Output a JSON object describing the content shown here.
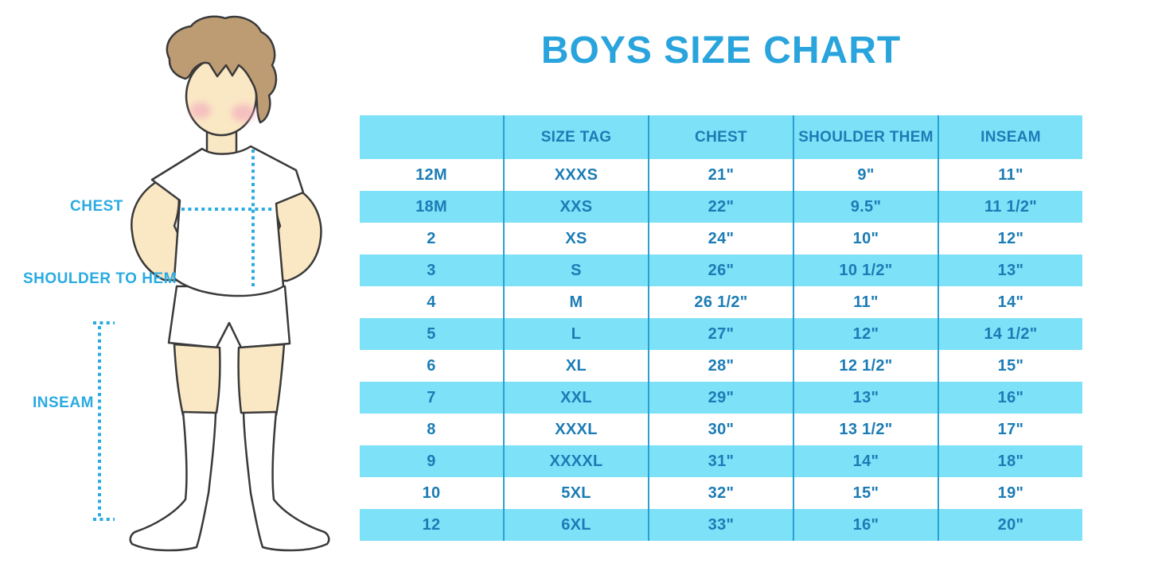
{
  "title": "BOYS SIZE CHART",
  "diagram": {
    "labels": {
      "chest": "CHEST",
      "shoulder_to_hem": "SHOULDER TO HEM",
      "inseam": "INSEAM"
    }
  },
  "table": {
    "columns": [
      "",
      "SIZE TAG",
      "CHEST",
      "SHOULDER THEM",
      "INSEAM"
    ],
    "rows": [
      [
        "12M",
        "XXXS",
        "21\"",
        "9\"",
        "11\""
      ],
      [
        "18M",
        "XXS",
        "22\"",
        "9.5\"",
        "11 1/2\""
      ],
      [
        "2",
        "XS",
        "24\"",
        "10\"",
        "12\""
      ],
      [
        "3",
        "S",
        "26\"",
        "10 1/2\"",
        "13\""
      ],
      [
        "4",
        "M",
        "26 1/2\"",
        "11\"",
        "14\""
      ],
      [
        "5",
        "L",
        "27\"",
        "12\"",
        "14 1/2\""
      ],
      [
        "6",
        "XL",
        "28\"",
        "12 1/2\"",
        "15\""
      ],
      [
        "7",
        "XXL",
        "29\"",
        "13\"",
        "16\""
      ],
      [
        "8",
        "XXXL",
        "30\"",
        "13 1/2\"",
        "17\""
      ],
      [
        "9",
        "XXXXL",
        "31\"",
        "14\"",
        "18\""
      ],
      [
        "10",
        "5XL",
        "32\"",
        "15\"",
        "19\""
      ],
      [
        "12",
        "6XL",
        "33\"",
        "16\"",
        "20\""
      ]
    ]
  },
  "colors": {
    "title": "#29A4DC",
    "label": "#29ABE2",
    "dotted": "#29ABE2",
    "stripe": "#7DE1F8",
    "divider": "#2B9FD3",
    "table_text": "#1B7CB5",
    "skin": "#FAE7C4",
    "hair": "#BD9C73",
    "outline": "#3A3A3A",
    "cheek": "#F2A0BC",
    "garment": "#FFFFFF"
  }
}
